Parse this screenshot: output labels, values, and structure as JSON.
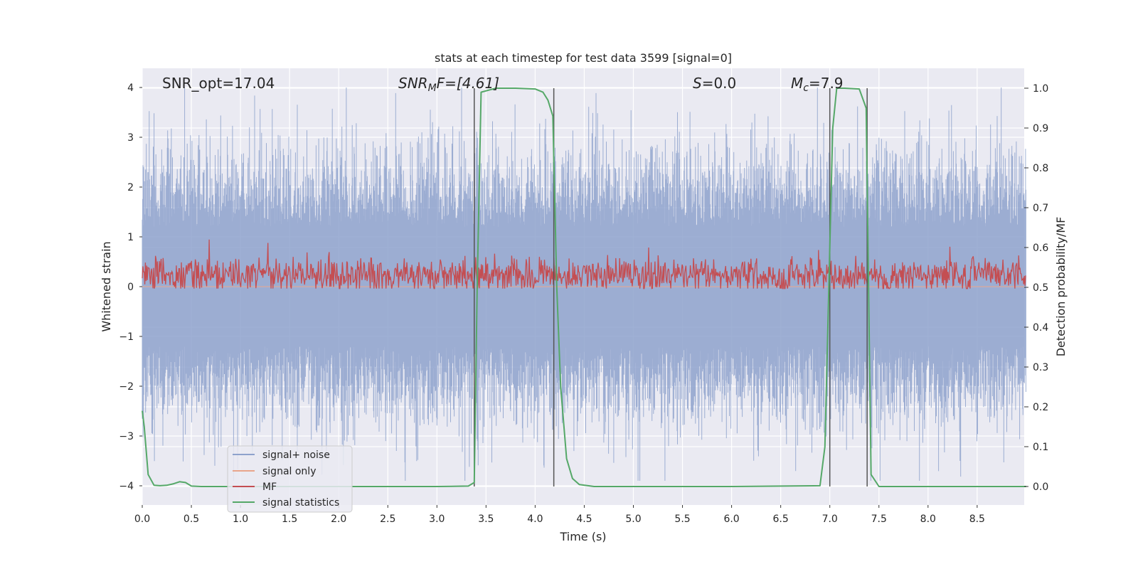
{
  "chart_data": {
    "type": "line",
    "title": "stats at each timestep for test data 3599 [signal=0]",
    "xlabel": "Time (s)",
    "ylabel_left": "Whitened strain",
    "ylabel_right": "Detection probability/MF",
    "xlim": [
      0.0,
      9.0
    ],
    "ylim_left": [
      -4.25,
      4.38
    ],
    "ylim_right": [
      -0.05,
      1.05
    ],
    "xticks": [
      "0.0",
      "0.5",
      "1.0",
      "1.5",
      "2.0",
      "2.5",
      "3.0",
      "3.5",
      "4.0",
      "4.5",
      "5.0",
      "5.5",
      "6.0",
      "6.5",
      "7.0",
      "7.5",
      "8.0",
      "8.5"
    ],
    "yticks_left": [
      "4",
      "3",
      "2",
      "1",
      "0",
      "−1",
      "−2",
      "−3",
      "−4"
    ],
    "yticks_right": [
      "1.0",
      "0.9",
      "0.8",
      "0.7",
      "0.6",
      "0.5",
      "0.4",
      "0.3",
      "0.2",
      "0.1",
      "0.0"
    ],
    "grid": true,
    "legend_position": "lower-left",
    "annotations": {
      "snr_opt": "SNR_opt=17.04",
      "snr_mf_base": "SNR",
      "snr_mf_sub": "M",
      "snr_mf_rest": "F=[4.61]",
      "s_base": "S",
      "s_rest": "=0.0",
      "mc_base": "M",
      "mc_sub": "c",
      "mc_rest": "=7.9"
    },
    "vertical_lines_x": [
      3.38,
      4.19,
      7.0,
      7.38
    ],
    "series": [
      {
        "name": "signal+ noise",
        "color": "#8ea2cc",
        "axis": "left",
        "description_values": {
          "mean": 0.0,
          "typical_abs_max": 2.4,
          "peak_max": 4.0,
          "peak_min": -3.9
        }
      },
      {
        "name": "signal only",
        "color": "#e9a58b",
        "axis": "left",
        "values_constant": 0.0
      },
      {
        "name": "MF",
        "color": "#c44e52",
        "axis": "right",
        "description_values": {
          "mean": 0.53,
          "band_low": 0.5,
          "band_high": 0.6,
          "peak_max": 0.62
        }
      },
      {
        "name": "signal statistics",
        "color": "#55a868",
        "axis": "right",
        "x": [
          0.0,
          0.02,
          0.06,
          0.12,
          0.18,
          0.25,
          0.32,
          0.38,
          0.44,
          0.5,
          0.6,
          1.0,
          2.0,
          3.0,
          3.32,
          3.38,
          3.41,
          3.45,
          3.6,
          3.8,
          4.0,
          4.08,
          4.13,
          4.18,
          4.22,
          4.26,
          4.32,
          4.38,
          4.45,
          4.6,
          5.0,
          6.0,
          6.9,
          6.95,
          6.99,
          7.03,
          7.07,
          7.15,
          7.3,
          7.37,
          7.42,
          7.5,
          8.0,
          9.0
        ],
        "y": [
          0.19,
          0.15,
          0.03,
          0.003,
          0.002,
          0.003,
          0.007,
          0.012,
          0.01,
          0.001,
          0.0,
          0.0,
          0.0,
          0.0,
          0.001,
          0.01,
          0.5,
          0.99,
          1.0,
          1.0,
          0.998,
          0.99,
          0.97,
          0.93,
          0.5,
          0.25,
          0.07,
          0.02,
          0.005,
          0.0,
          0.0,
          0.0,
          0.002,
          0.1,
          0.5,
          0.9,
          1.0,
          1.0,
          0.998,
          0.95,
          0.03,
          0.0,
          0.0,
          0.0
        ]
      }
    ]
  }
}
